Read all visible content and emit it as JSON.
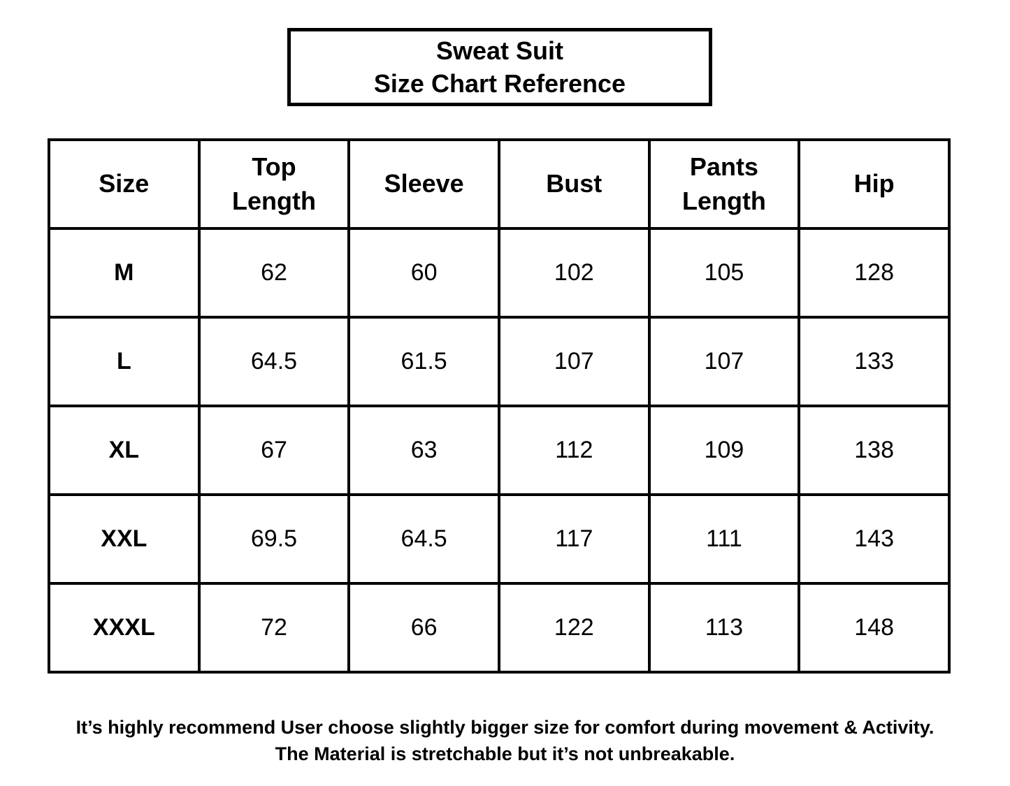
{
  "title_box": {
    "line1": "Sweat Suit",
    "line2": "Size Chart Reference"
  },
  "chart_data": {
    "type": "table",
    "title": "Sweat Suit Size Chart Reference",
    "columns": [
      "Size",
      "Top Length",
      "Sleeve",
      "Bust",
      "Pants Length",
      "Hip"
    ],
    "rows": [
      [
        "M",
        "62",
        "60",
        "102",
        "105",
        "128"
      ],
      [
        "L",
        "64.5",
        "61.5",
        "107",
        "107",
        "133"
      ],
      [
        "XL",
        "67",
        "63",
        "112",
        "109",
        "138"
      ],
      [
        "XXL",
        "69.5",
        "64.5",
        "117",
        "111",
        "143"
      ],
      [
        "XXXL",
        "72",
        "66",
        "122",
        "113",
        "148"
      ]
    ]
  },
  "footer": {
    "line1": "It’s highly recommend User choose slightly bigger size for comfort during movement & Activity.",
    "line2": "The Material is stretchable but it’s not unbreakable."
  },
  "colors": {
    "background": "#ffffff",
    "border": "#000000",
    "text": "#000000"
  }
}
